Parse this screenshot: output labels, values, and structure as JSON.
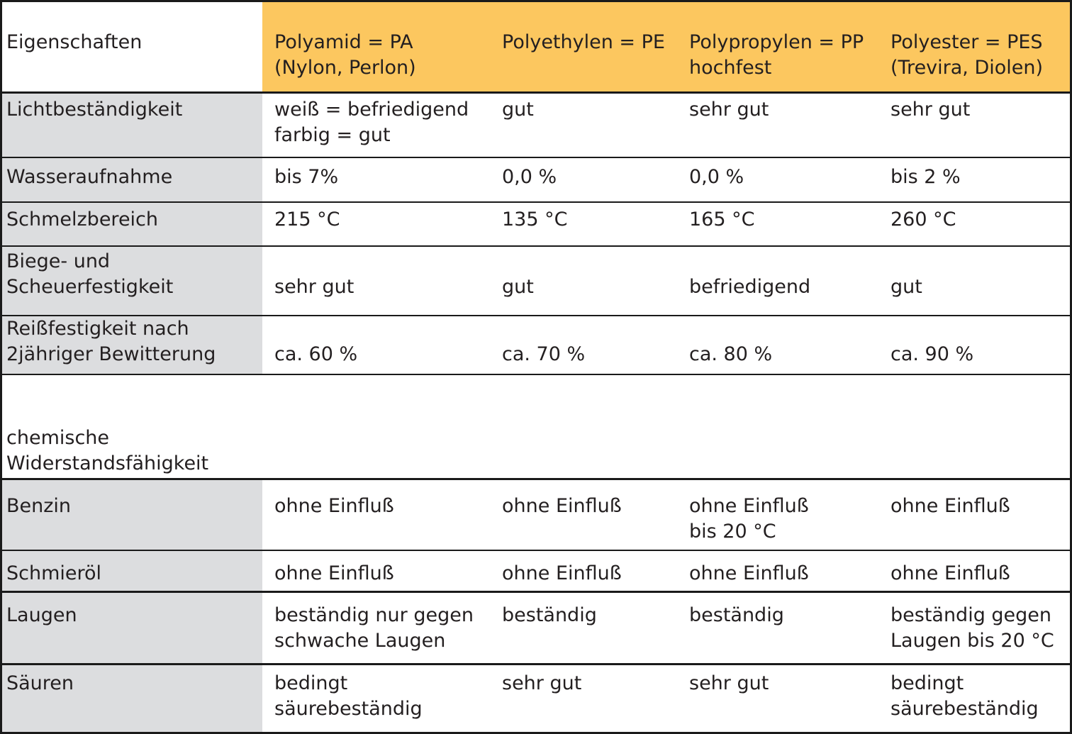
{
  "table": {
    "header": {
      "label": "Eigenschaften",
      "columns": [
        "Polyamid = PA\n(Nylon, Perlon)",
        "Polyethylen = PE",
        "Polypropylen = PP\nhochfest",
        "Polyester = PES\n(Trevira, Diolen)"
      ]
    },
    "rows": [
      {
        "label": "Lichtbeständigkeit",
        "cells": [
          "weiß  = befriedigend\nfarbig = gut",
          "gut",
          "sehr gut",
          "sehr gut"
        ]
      },
      {
        "label": "Wasseraufnahme",
        "cells": [
          "bis 7%",
          "0,0 %",
          "0,0 %",
          "bis 2 %"
        ]
      },
      {
        "label": "Schmelzbereich",
        "cells": [
          "215 °C",
          "135 °C",
          "165 °C",
          "260 °C"
        ]
      },
      {
        "label": "Biege- und\nScheuerfestigkeit",
        "cells": [
          "sehr gut",
          "gut",
          "befriedigend",
          "gut"
        ]
      },
      {
        "label": "Reißfestigkeit nach\n2jähriger Bewitterung",
        "cells": [
          "ca. 60 %",
          "ca. 70 %",
          "ca. 80 %",
          "ca. 90 %"
        ]
      }
    ],
    "section_label": "chemische\nWiderstandsfähigkeit",
    "chem_rows": [
      {
        "label": "Benzin",
        "cells": [
          "ohne Einfluß",
          "ohne Einfluß",
          "ohne Einfluß\nbis 20 °C",
          "ohne Einfluß"
        ]
      },
      {
        "label": "Schmieröl",
        "cells": [
          "ohne Einfluß",
          "ohne Einfluß",
          "ohne Einfluß",
          "ohne Einfluß"
        ]
      },
      {
        "label": "Laugen",
        "cells": [
          "beständig nur gegen\nschwache Laugen",
          "beständig",
          "beständig",
          "beständig gegen\nLaugen bis 20 °C"
        ]
      },
      {
        "label": "Säuren",
        "cells": [
          "bedingt\nsäurebeständig",
          "sehr gut",
          "sehr gut",
          "bedingt\nsäurebeständig"
        ]
      }
    ]
  }
}
